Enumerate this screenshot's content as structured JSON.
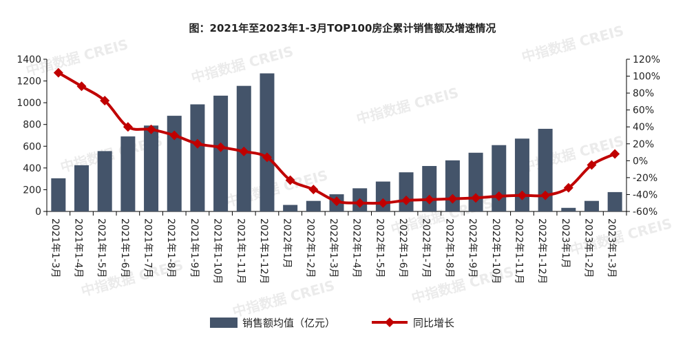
{
  "chart_data": {
    "type": "bar",
    "title": "图：2021年至2023年1-3月TOP100房企累计销售额及增速情况",
    "categories": [
      "2021年1-3月",
      "2021年1-4月",
      "2021年1-5月",
      "2021年1-6月",
      "2021年1-7月",
      "2021年1-8月",
      "2021年1-9月",
      "2021年1-10月",
      "2021年1-11月",
      "2021年1-12月",
      "2022年1月",
      "2022年1-2月",
      "2022年1-3月",
      "2022年1-4月",
      "2022年1-5月",
      "2022年1-6月",
      "2022年1-7月",
      "2022年1-8月",
      "2022年1-9月",
      "2022年1-10月",
      "2022年1-11月",
      "2022年1-12月",
      "2023年1月",
      "2023年1-2月",
      "2023年1-3月"
    ],
    "series": [
      {
        "name": "销售额均值（亿元）",
        "type": "bar",
        "axis": "left",
        "color": "#44546a",
        "values": [
          305,
          425,
          555,
          690,
          790,
          880,
          985,
          1065,
          1155,
          1270,
          60,
          97,
          158,
          213,
          275,
          360,
          418,
          470,
          540,
          610,
          670,
          760,
          33,
          97,
          178
        ]
      },
      {
        "name": "同比增长",
        "type": "line",
        "axis": "right",
        "color": "#c00000",
        "unit": "%",
        "values": [
          104,
          88,
          71,
          40,
          37,
          30,
          20,
          16,
          11,
          4,
          -23,
          -34,
          -48,
          -50,
          -50,
          -47,
          -46,
          -45,
          -44,
          -42,
          -41,
          -41,
          -32,
          -5,
          8
        ]
      }
    ],
    "ylim_left": [
      0,
      1400
    ],
    "yticks_left": [
      "0",
      "200",
      "400",
      "600",
      "800",
      "1000",
      "1200",
      "1400"
    ],
    "ylim_right": [
      -60,
      120
    ],
    "yticks_right": [
      "-60%",
      "-40%",
      "-20%",
      "0%",
      "20%",
      "40%",
      "60%",
      "80%",
      "100%",
      "120%"
    ],
    "legend_position": "bottom",
    "grid": false
  },
  "watermark_text": "中指数据 CREIS"
}
